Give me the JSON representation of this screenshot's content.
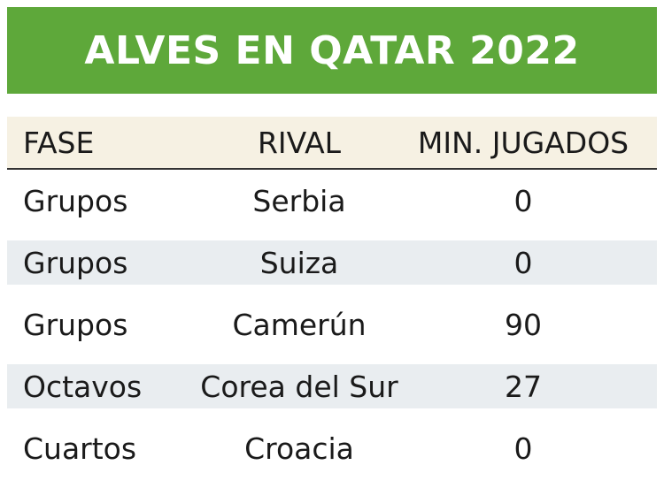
{
  "chart_data": {
    "type": "table",
    "title": "ALVES EN QATAR 2022",
    "columns": [
      "FASE",
      "RIVAL",
      "MIN. JUGADOS"
    ],
    "rows": [
      {
        "fase": "Grupos",
        "rival": "Serbia",
        "minutos": "0"
      },
      {
        "fase": "Grupos",
        "rival": "Suiza",
        "minutos": "0"
      },
      {
        "fase": "Grupos",
        "rival": "Camerún",
        "minutos": "90"
      },
      {
        "fase": "Octavos",
        "rival": "Corea del Sur",
        "minutos": "27"
      },
      {
        "fase": "Cuartos",
        "rival": "Croacia",
        "minutos": "0"
      }
    ]
  },
  "colors": {
    "banner": "#5ea83a",
    "header_bg": "#f6f1e3",
    "stripe_bg": "#e9edf0",
    "text": "#1a1a1a"
  }
}
